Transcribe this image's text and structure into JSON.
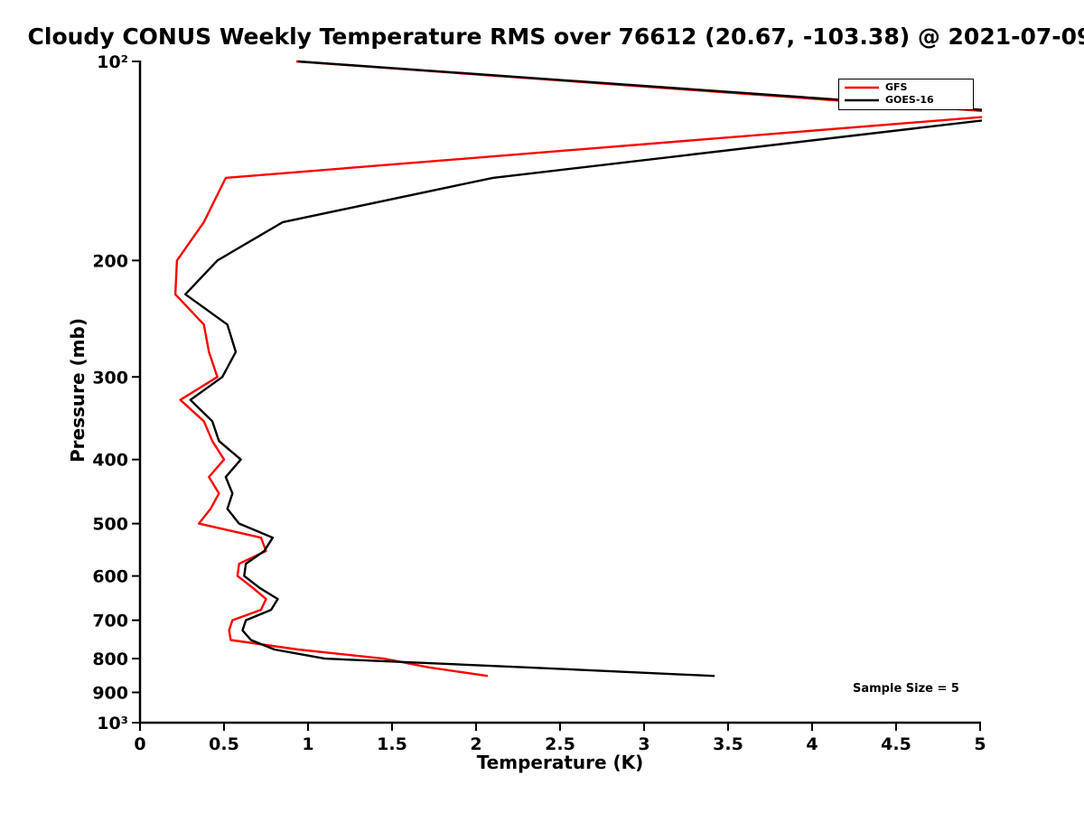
{
  "annotation": "Sample Size = 5",
  "chart_data": {
    "type": "line",
    "title": "Cloudy CONUS Weekly Temperature RMS over 76612 (20.67, -103.38) @ 2021-07-09",
    "xlabel": "Temperature (K)",
    "ylabel": "Pressure (mb)",
    "xlim": [
      0,
      5
    ],
    "ylim": [
      100,
      1000
    ],
    "y_scale": "log",
    "y_inverted": true,
    "grid": false,
    "legend_position": "top-right",
    "annotation": "Sample Size = 5",
    "xticks": [
      {
        "value": 0,
        "label": "0"
      },
      {
        "value": 0.5,
        "label": "0.5"
      },
      {
        "value": 1,
        "label": "1"
      },
      {
        "value": 1.5,
        "label": "1.5"
      },
      {
        "value": 2,
        "label": "2"
      },
      {
        "value": 2.5,
        "label": "2.5"
      },
      {
        "value": 3,
        "label": "3"
      },
      {
        "value": 3.5,
        "label": "3.5"
      },
      {
        "value": 4,
        "label": "4"
      },
      {
        "value": 4.5,
        "label": "4.5"
      },
      {
        "value": 5,
        "label": "5"
      }
    ],
    "yticks": [
      {
        "value": 100,
        "label": "10²"
      },
      {
        "value": 200,
        "label": "200"
      },
      {
        "value": 300,
        "label": "300"
      },
      {
        "value": 400,
        "label": "400"
      },
      {
        "value": 500,
        "label": "500"
      },
      {
        "value": 600,
        "label": "600"
      },
      {
        "value": 700,
        "label": "700"
      },
      {
        "value": 800,
        "label": "800"
      },
      {
        "value": 900,
        "label": "900"
      },
      {
        "value": 1000,
        "label": "10³"
      }
    ],
    "pressure_levels": [
      100,
      120,
      150,
      175,
      200,
      225,
      250,
      275,
      300,
      325,
      350,
      375,
      400,
      425,
      450,
      475,
      500,
      525,
      550,
      575,
      600,
      625,
      650,
      675,
      700,
      725,
      750,
      775,
      800,
      825,
      850
    ],
    "series": [
      {
        "name": "GFS",
        "color": "#ff0000",
        "values": [
          0.93,
          5.25,
          0.51,
          0.38,
          0.22,
          0.21,
          0.38,
          0.41,
          0.46,
          0.24,
          0.38,
          0.43,
          0.5,
          0.41,
          0.47,
          0.42,
          0.35,
          0.72,
          0.75,
          0.59,
          0.58,
          0.67,
          0.75,
          0.72,
          0.55,
          0.53,
          0.54,
          0.94,
          1.45,
          1.72,
          2.07
        ]
      },
      {
        "name": "GOES-16",
        "color": "#000000",
        "values": [
          0.94,
          5.35,
          2.1,
          0.85,
          0.46,
          0.27,
          0.52,
          0.57,
          0.49,
          0.3,
          0.43,
          0.47,
          0.6,
          0.51,
          0.55,
          0.52,
          0.59,
          0.79,
          0.74,
          0.63,
          0.62,
          0.71,
          0.82,
          0.78,
          0.63,
          0.61,
          0.66,
          0.8,
          1.1,
          2.3,
          3.42
        ]
      }
    ]
  }
}
